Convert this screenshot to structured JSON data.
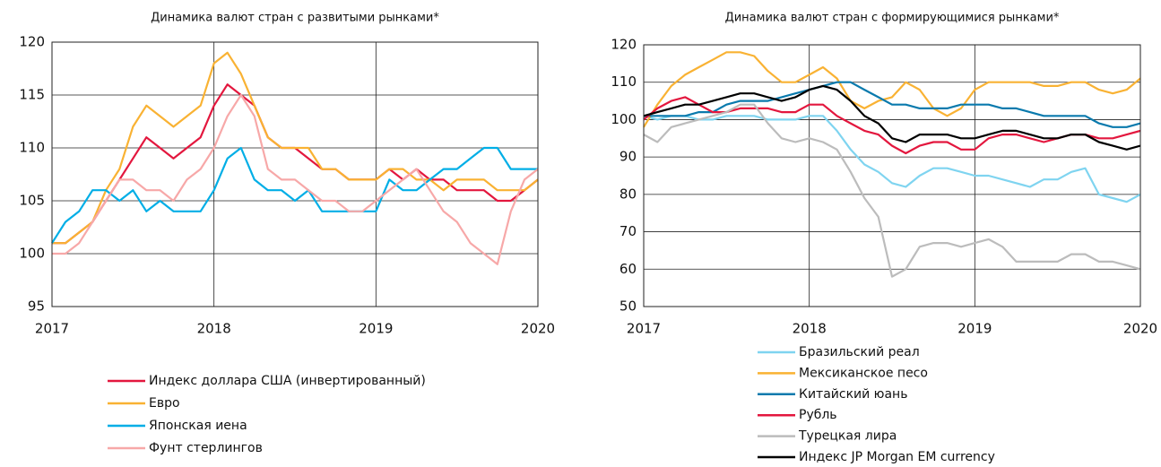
{
  "chart_data": [
    {
      "type": "line",
      "title": "Динамика валют стран с развитыми рынками*",
      "x": [
        2017,
        2017.083,
        2017.167,
        2017.25,
        2017.333,
        2017.417,
        2017.5,
        2017.583,
        2017.667,
        2017.75,
        2017.833,
        2017.917,
        2018,
        2018.083,
        2018.167,
        2018.25,
        2018.333,
        2018.417,
        2018.5,
        2018.583,
        2018.667,
        2018.75,
        2018.833,
        2018.917,
        2019,
        2019.083,
        2019.167,
        2019.25,
        2019.333,
        2019.417,
        2019.5,
        2019.583,
        2019.667,
        2019.75,
        2019.833,
        2019.917,
        2020
      ],
      "xlim": [
        2017,
        2020
      ],
      "xticks": [
        2017,
        2018,
        2019,
        2020
      ],
      "ylim": [
        95,
        120
      ],
      "yticks": [
        95,
        100,
        105,
        110,
        115,
        120
      ],
      "grid": true,
      "legend": "bottom",
      "series": [
        {
          "name": "Индекс доллара США (инвертированный)",
          "color": "#e3173e",
          "values": [
            101,
            101,
            102,
            103,
            105,
            107,
            109,
            111,
            110,
            109,
            110,
            111,
            114,
            116,
            115,
            114,
            111,
            110,
            110,
            109,
            108,
            108,
            107,
            107,
            107,
            108,
            107,
            108,
            107,
            107,
            106,
            106,
            106,
            105,
            105,
            106,
            107
          ]
        },
        {
          "name": "Евро",
          "color": "#f9b233",
          "values": [
            101,
            101,
            102,
            103,
            106,
            108,
            112,
            114,
            113,
            112,
            113,
            114,
            118,
            119,
            117,
            114,
            111,
            110,
            110,
            110,
            108,
            108,
            107,
            107,
            107,
            108,
            108,
            107,
            107,
            106,
            107,
            107,
            107,
            106,
            106,
            106,
            107
          ]
        },
        {
          "name": "Японская иена",
          "color": "#00aee6",
          "values": [
            101,
            103,
            104,
            106,
            106,
            105,
            106,
            104,
            105,
            104,
            104,
            104,
            106,
            109,
            110,
            107,
            106,
            106,
            105,
            106,
            104,
            104,
            104,
            104,
            104,
            107,
            106,
            106,
            107,
            108,
            108,
            109,
            110,
            110,
            108,
            108,
            108
          ]
        },
        {
          "name": "Фунт стерлингов",
          "color": "#f7a8a8",
          "values": [
            100,
            100,
            101,
            103,
            105,
            107,
            107,
            106,
            106,
            105,
            107,
            108,
            110,
            113,
            115,
            113,
            108,
            107,
            107,
            106,
            105,
            105,
            104,
            104,
            105,
            106,
            107,
            108,
            106,
            104,
            103,
            101,
            100,
            99,
            104,
            107,
            108
          ]
        }
      ]
    },
    {
      "type": "line",
      "title": "Динамика валют стран с формирующимися рынками*",
      "x": [
        2017,
        2017.083,
        2017.167,
        2017.25,
        2017.333,
        2017.417,
        2017.5,
        2017.583,
        2017.667,
        2017.75,
        2017.833,
        2017.917,
        2018,
        2018.083,
        2018.167,
        2018.25,
        2018.333,
        2018.417,
        2018.5,
        2018.583,
        2018.667,
        2018.75,
        2018.833,
        2018.917,
        2019,
        2019.083,
        2019.167,
        2019.25,
        2019.333,
        2019.417,
        2019.5,
        2019.583,
        2019.667,
        2019.75,
        2019.833,
        2019.917,
        2020
      ],
      "xlim": [
        2017,
        2020
      ],
      "xticks": [
        2017,
        2018,
        2019,
        2020
      ],
      "ylim": [
        50,
        120
      ],
      "yticks": [
        50,
        60,
        70,
        80,
        90,
        100,
        110,
        120
      ],
      "grid": true,
      "legend": "bottom",
      "series": [
        {
          "name": "Бразильский реал",
          "color": "#7fd4f0",
          "values": [
            101,
            100,
            101,
            101,
            100,
            100,
            101,
            101,
            101,
            100,
            100,
            100,
            101,
            101,
            97,
            92,
            88,
            86,
            83,
            82,
            85,
            87,
            87,
            86,
            85,
            85,
            84,
            83,
            82,
            84,
            84,
            86,
            87,
            80,
            79,
            78,
            80
          ]
        },
        {
          "name": "Мексиканское песо",
          "color": "#f9b233",
          "values": [
            98,
            104,
            109,
            112,
            114,
            116,
            118,
            118,
            117,
            113,
            110,
            110,
            112,
            114,
            111,
            105,
            103,
            105,
            106,
            110,
            108,
            103,
            101,
            103,
            108,
            110,
            110,
            110,
            110,
            109,
            109,
            110,
            110,
            108,
            107,
            108,
            111
          ]
        },
        {
          "name": "Китайский юань",
          "color": "#0a7aad",
          "values": [
            101,
            101,
            101,
            101,
            102,
            102,
            104,
            105,
            105,
            105,
            106,
            107,
            108,
            109,
            110,
            110,
            108,
            106,
            104,
            104,
            103,
            103,
            103,
            104,
            104,
            104,
            103,
            103,
            102,
            101,
            101,
            101,
            101,
            99,
            98,
            98,
            99
          ]
        },
        {
          "name": "Рубль",
          "color": "#e3173e",
          "values": [
            100,
            103,
            105,
            106,
            104,
            102,
            102,
            103,
            103,
            103,
            102,
            102,
            104,
            104,
            101,
            99,
            97,
            96,
            93,
            91,
            93,
            94,
            94,
            92,
            92,
            95,
            96,
            96,
            95,
            94,
            95,
            96,
            96,
            95,
            95,
            96,
            97
          ]
        },
        {
          "name": "Турецкая лира",
          "color": "#bcbcbc",
          "values": [
            96,
            94,
            98,
            99,
            100,
            101,
            102,
            104,
            104,
            99,
            95,
            94,
            95,
            94,
            92,
            86,
            79,
            74,
            58,
            60,
            66,
            67,
            67,
            66,
            67,
            68,
            66,
            62,
            62,
            62,
            62,
            64,
            64,
            62,
            62,
            61,
            60
          ]
        },
        {
          "name": "Индекс JP Morgan EM currency",
          "color": "#000000",
          "values": [
            101,
            102,
            103,
            104,
            104,
            105,
            106,
            107,
            107,
            106,
            105,
            106,
            108,
            109,
            108,
            105,
            101,
            99,
            95,
            94,
            96,
            96,
            96,
            95,
            95,
            96,
            97,
            97,
            96,
            95,
            95,
            96,
            96,
            94,
            93,
            92,
            93
          ]
        }
      ]
    }
  ]
}
